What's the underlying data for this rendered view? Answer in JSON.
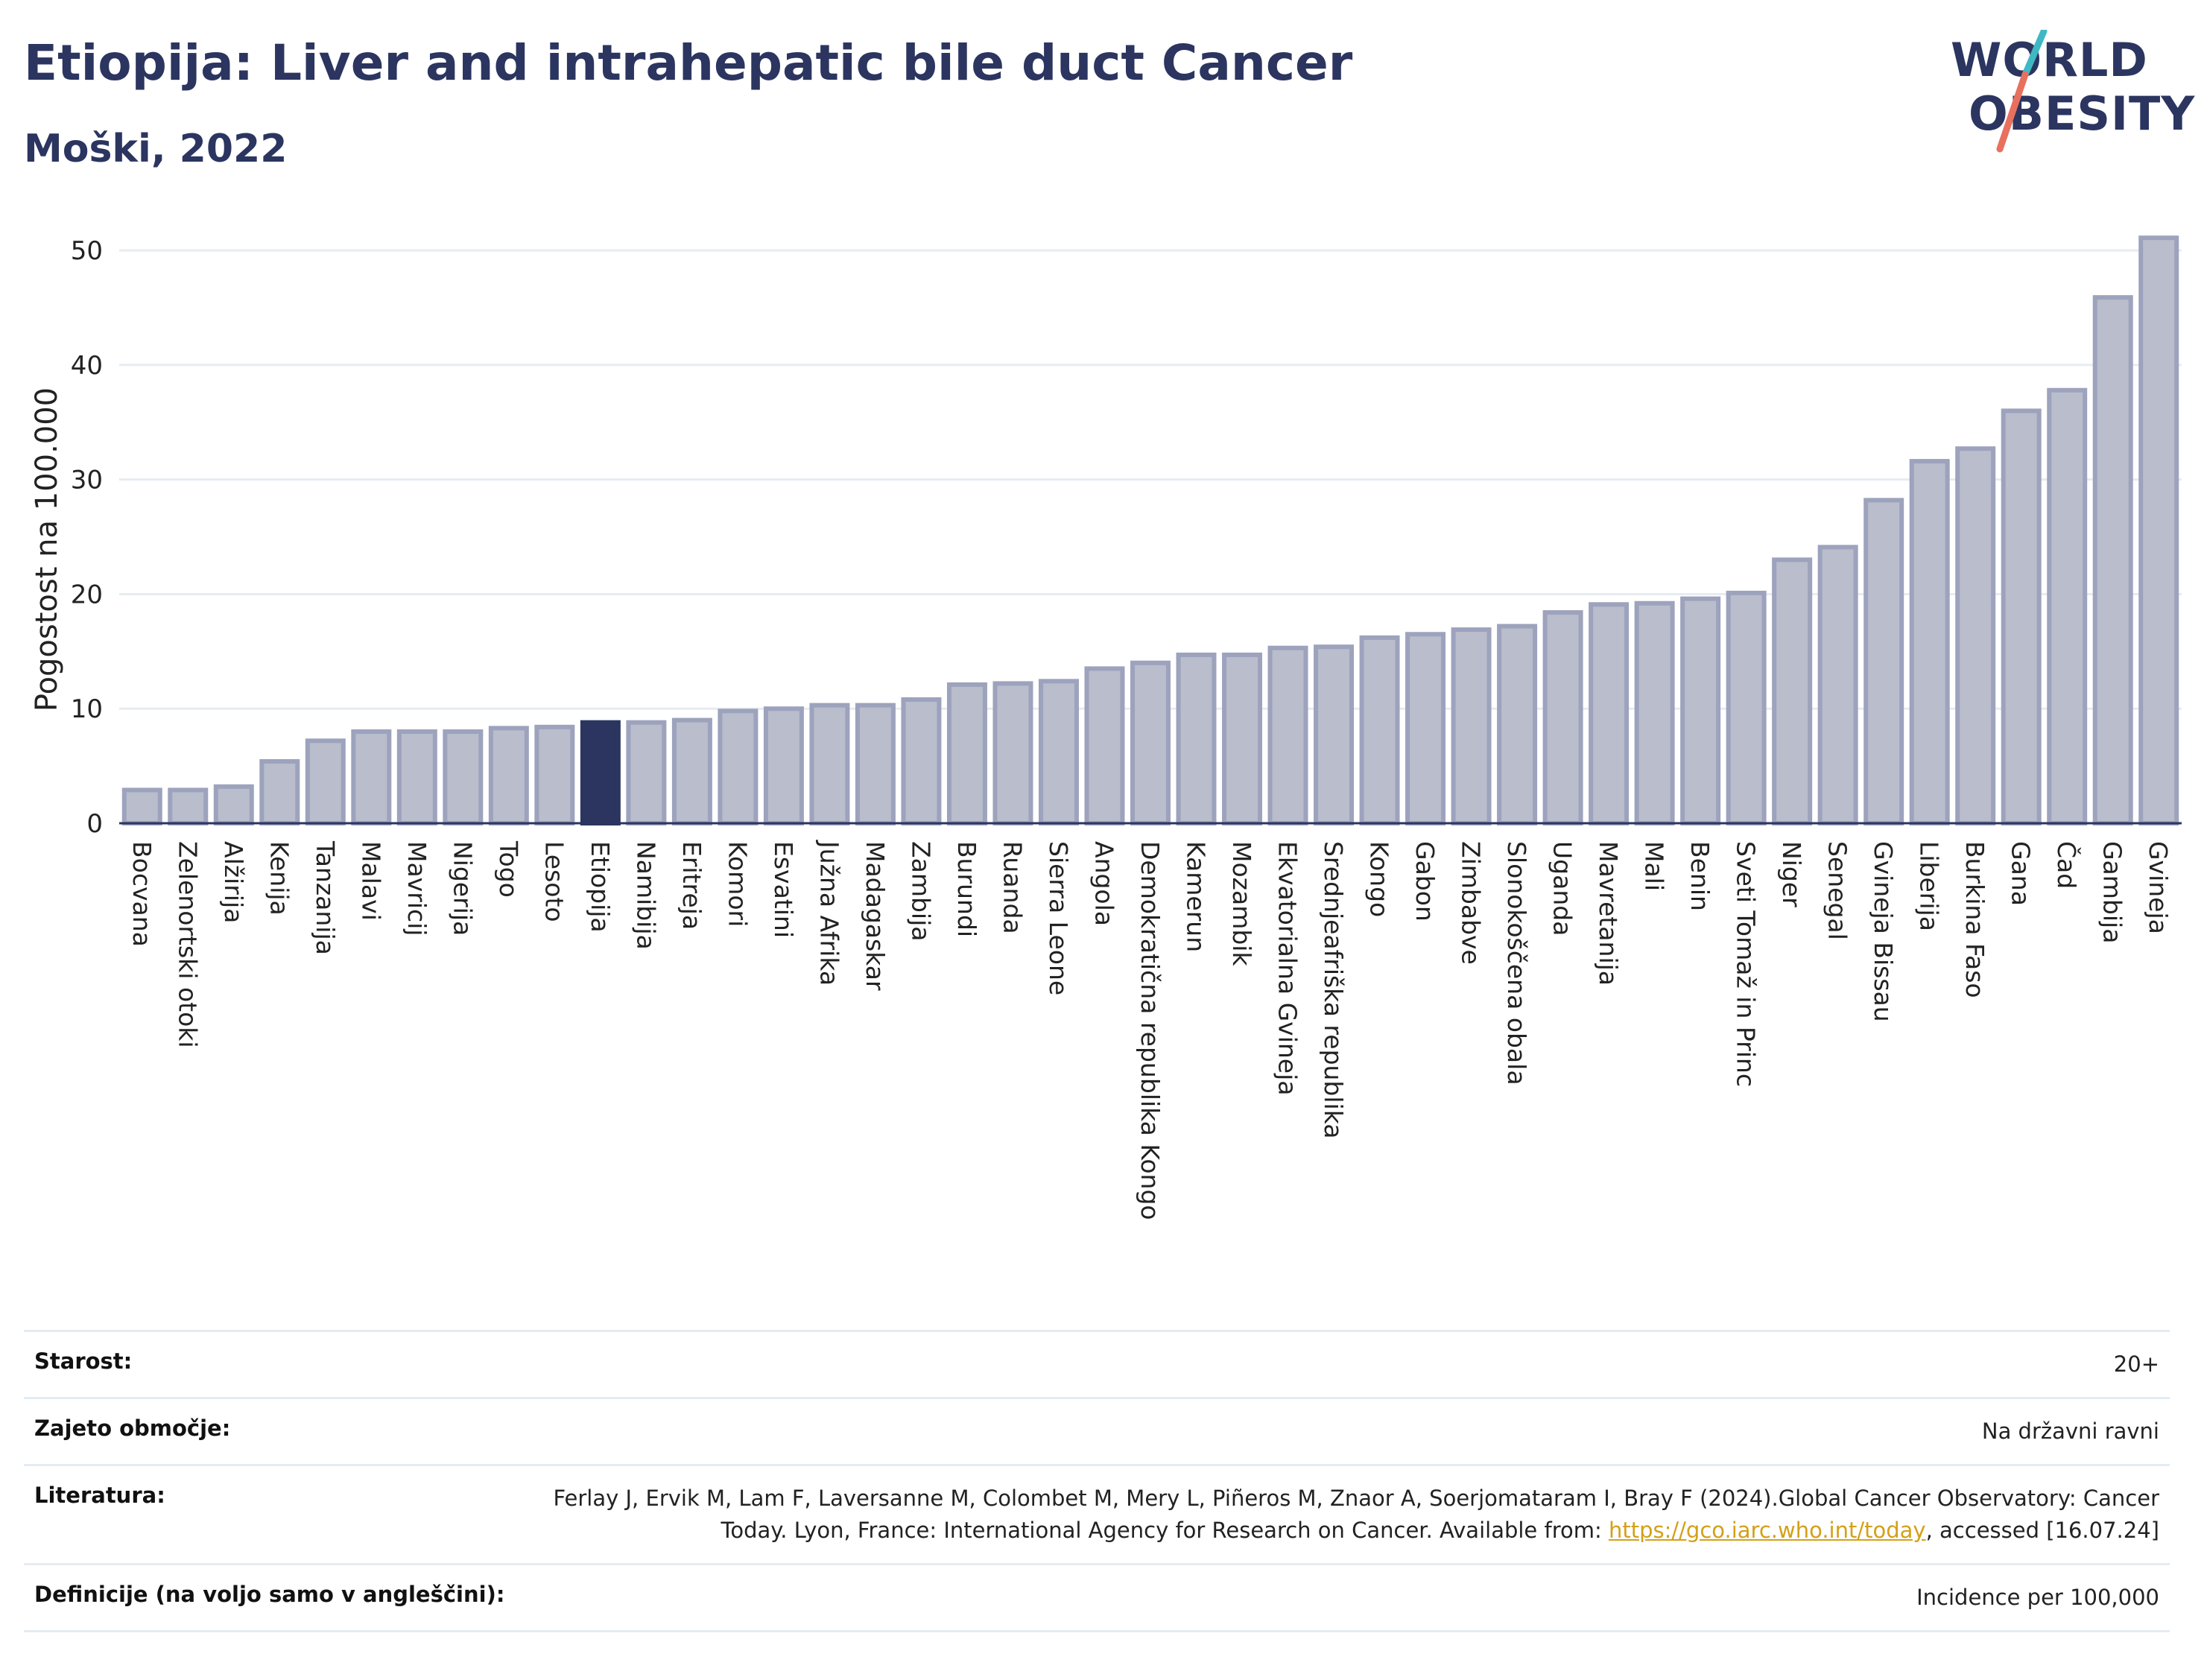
{
  "header": {
    "title": "Etiopija: Liver and intrahepatic bile duct Cancer",
    "subtitle": "Moški, 2022"
  },
  "logo": {
    "line1": "WORLD",
    "line2": "OBESITY",
    "icon": "world-obesity-logo",
    "colors": {
      "text": "#2b3560",
      "slash_top": "#3fb8c4",
      "slash_bottom": "#e8705e"
    }
  },
  "chart_data": {
    "type": "bar",
    "title": "Etiopija: Liver and intrahepatic bile duct Cancer",
    "subtitle": "Moški, 2022",
    "ylabel": "Pogostost na 100.000",
    "xlabel": "",
    "ylim": [
      0,
      53
    ],
    "yticks": [
      0,
      10,
      20,
      30,
      40,
      50
    ],
    "grid": true,
    "highlight": "Etiopija",
    "colors": {
      "bar": "#b9bdcc",
      "bar_edge": "#9da2bd",
      "highlight": "#2b3560",
      "grid": "#e6ecf1"
    },
    "categories": [
      "Bocvana",
      "Zelenortski otoki",
      "Alžirija",
      "Kenija",
      "Tanzanija",
      "Malavi",
      "Mavricij",
      "Nigerija",
      "Togo",
      "Lesoto",
      "Etiopija",
      "Namibija",
      "Eritreja",
      "Komori",
      "Esvatini",
      "Južna Afrika",
      "Madagaskar",
      "Zambija",
      "Burundi",
      "Ruanda",
      "Sierra Leone",
      "Angola",
      "Demokratična republika Kongo",
      "Kamerun",
      "Mozambik",
      "Ekvatorialna Gvineja",
      "Srednjeafriška republika",
      "Kongo",
      "Gabon",
      "Zimbabve",
      "Slonokoščena obala",
      "Uganda",
      "Mavretanija",
      "Mali",
      "Benin",
      "Sveti Tomaž in Princ",
      "Niger",
      "Senegal",
      "Gvineja Bissau",
      "Liberija",
      "Burkina Faso",
      "Gana",
      "Čad",
      "Gambija",
      "Gvineja"
    ],
    "values": [
      2.9,
      2.9,
      3.2,
      5.4,
      7.2,
      8.0,
      8.0,
      8.0,
      8.3,
      8.4,
      8.8,
      8.8,
      9.0,
      9.8,
      10.0,
      10.3,
      10.3,
      10.8,
      12.1,
      12.2,
      12.4,
      13.5,
      14.0,
      14.7,
      14.7,
      15.3,
      15.4,
      16.2,
      16.5,
      16.9,
      17.2,
      18.4,
      19.1,
      19.2,
      19.6,
      20.1,
      23.0,
      24.1,
      28.2,
      31.6,
      32.7,
      36.0,
      37.8,
      45.9,
      51.1
    ]
  },
  "info": {
    "rows": [
      {
        "label": "Starost:",
        "value": "20+"
      },
      {
        "label": "Zajeto območje:",
        "value": "Na državni ravni"
      },
      {
        "label": "Literatura:",
        "value_part1": "Ferlay J, Ervik M, Lam F, Laversanne M, Colombet M, Mery L, Piñeros M, Znaor A, Soerjomataram I, Bray F (2024).Global Cancer Observatory: Cancer Today. Lyon, France: International Agency for Research on Cancer. Available from: ",
        "link": "https://gco.iarc.who.int/today",
        "value_part2": ", accessed [16.07.24]"
      },
      {
        "label": "Definicije (na voljo samo v angleščini):",
        "value": "Incidence per 100,000"
      }
    ]
  }
}
